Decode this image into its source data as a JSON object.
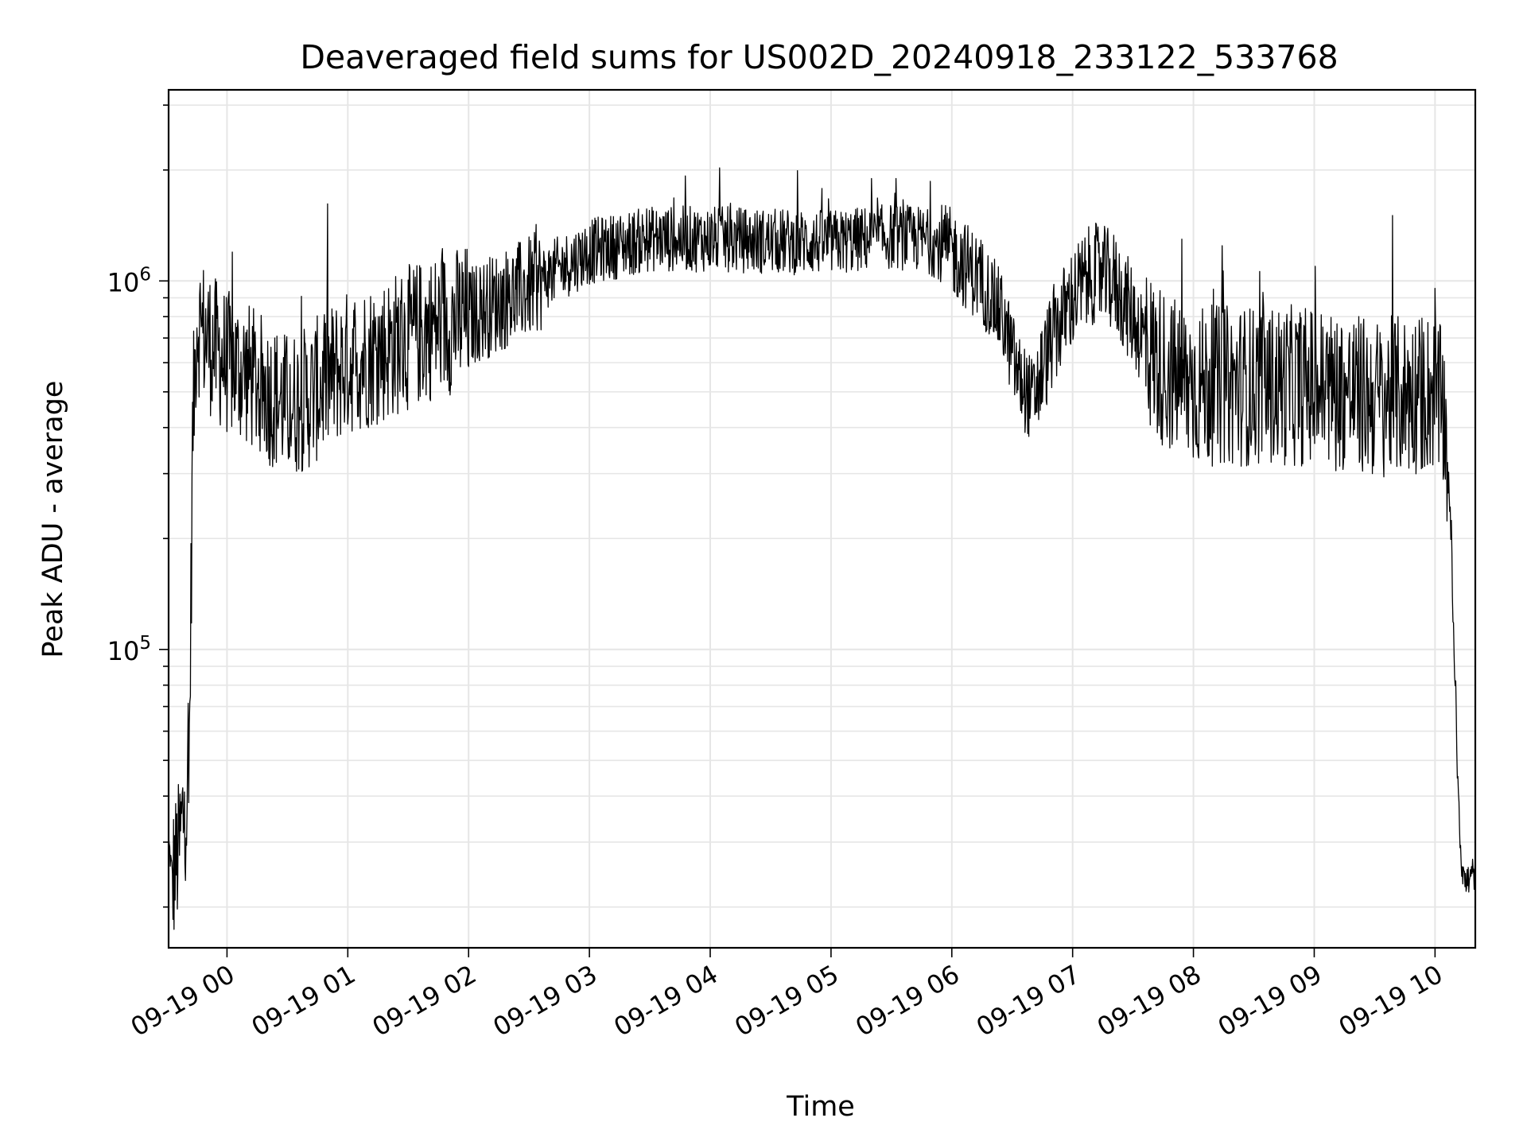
{
  "chart_data": {
    "type": "line",
    "title": "Deaveraged field sums for US002D_20240918_233122_533768",
    "xlabel": "Time",
    "ylabel": "Peak ADU - average",
    "yscale": "log",
    "ylim": [
      15500,
      3300000
    ],
    "xlim": [
      "2024-09-18 23:31",
      "2024-09-19 10:20"
    ],
    "grid": true,
    "line_color": "#000000",
    "x_ticks": [
      "09-19 00",
      "09-19 01",
      "09-19 02",
      "09-19 03",
      "09-19 04",
      "09-19 05",
      "09-19 06",
      "09-19 07",
      "09-19 08",
      "09-19 09",
      "09-19 10"
    ],
    "y_ticks": [
      {
        "value": 100000,
        "base": "10",
        "exp": "5"
      },
      {
        "value": 1000000,
        "base": "10",
        "exp": "6"
      }
    ],
    "series": [
      {
        "name": "",
        "x": [
          "2024-09-18 23:31",
          "2024-09-18 23:33",
          "2024-09-18 23:36",
          "2024-09-18 23:38",
          "2024-09-18 23:41",
          "2024-09-18 23:42",
          "2024-09-18 23:43",
          "2024-09-18 23:45",
          "2024-09-18 23:50",
          "2024-09-18 23:55",
          "2024-09-19 00:00",
          "2024-09-19 00:10",
          "2024-09-19 00:20",
          "2024-09-19 00:30",
          "2024-09-19 00:40",
          "2024-09-19 00:50",
          "2024-09-19 01:00",
          "2024-09-19 01:15",
          "2024-09-19 01:30",
          "2024-09-19 01:45",
          "2024-09-19 02:00",
          "2024-09-19 02:15",
          "2024-09-19 02:30",
          "2024-09-19 02:45",
          "2024-09-19 03:00",
          "2024-09-19 03:30",
          "2024-09-19 04:00",
          "2024-09-19 04:30",
          "2024-09-19 05:00",
          "2024-09-19 05:30",
          "2024-09-19 05:45",
          "2024-09-19 06:00",
          "2024-09-19 06:15",
          "2024-09-19 06:25",
          "2024-09-19 06:33",
          "2024-09-19 06:40",
          "2024-09-19 06:50",
          "2024-09-19 07:00",
          "2024-09-19 07:10",
          "2024-09-19 07:20",
          "2024-09-19 07:30",
          "2024-09-19 07:40",
          "2024-09-19 07:50",
          "2024-09-19 08:00",
          "2024-09-19 08:30",
          "2024-09-19 09:00",
          "2024-09-19 09:30",
          "2024-09-19 10:00",
          "2024-09-19 10:05",
          "2024-09-19 10:08",
          "2024-09-19 10:11",
          "2024-09-19 10:13",
          "2024-09-19 10:15",
          "2024-09-19 10:20"
        ],
        "values": [
          30000,
          24000,
          28000,
          35000,
          40000,
          120000,
          400000,
          780000,
          700000,
          640000,
          600000,
          560000,
          500000,
          460000,
          480000,
          540000,
          600000,
          640000,
          700000,
          760000,
          800000,
          880000,
          960000,
          1080000,
          1200000,
          1300000,
          1300000,
          1280000,
          1270000,
          1320000,
          1300000,
          1200000,
          1000000,
          800000,
          550000,
          470000,
          700000,
          900000,
          1050000,
          1000000,
          800000,
          620000,
          550000,
          520000,
          520000,
          520000,
          480000,
          500000,
          420000,
          200000,
          50000,
          27000,
          23000,
          25000
        ]
      }
    ]
  }
}
